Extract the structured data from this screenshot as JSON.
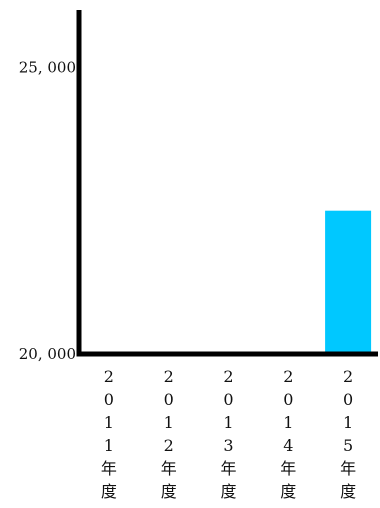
{
  "chart_data": {
    "type": "bar",
    "categories": [
      "2011年度",
      "2012年度",
      "2013年度",
      "2014年度",
      "2015年度"
    ],
    "values": [
      20000,
      20000,
      20000,
      20000,
      22500
    ],
    "title": "",
    "xlabel": "",
    "ylabel": "",
    "ylim": [
      20000,
      26000
    ],
    "y_ticks": [
      20000,
      25000
    ],
    "y_tick_labels": [
      "20, 000",
      "25, 000"
    ],
    "grid": false,
    "legend": "none",
    "bar_color": "#00c8ff",
    "axis_color": "#000000"
  }
}
